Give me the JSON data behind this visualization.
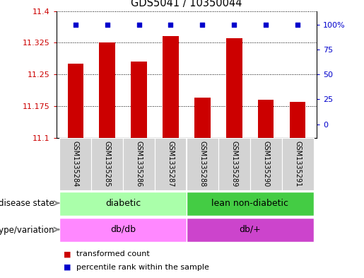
{
  "title": "GDS5041 / 10350044",
  "samples": [
    "GSM1335284",
    "GSM1335285",
    "GSM1335286",
    "GSM1335287",
    "GSM1335288",
    "GSM1335289",
    "GSM1335290",
    "GSM1335291"
  ],
  "bar_values": [
    11.275,
    11.325,
    11.28,
    11.34,
    11.195,
    11.335,
    11.19,
    11.185
  ],
  "percentile_values": [
    100,
    100,
    100,
    100,
    100,
    100,
    100,
    100
  ],
  "ylim": [
    11.1,
    11.4
  ],
  "yticks": [
    11.1,
    11.175,
    11.25,
    11.325,
    11.4
  ],
  "right_yticks": [
    0,
    25,
    50,
    75,
    100
  ],
  "bar_color": "#cc0000",
  "percentile_color": "#0000cc",
  "left_tick_color": "#cc0000",
  "right_tick_color": "#0000cc",
  "disease_state_groups": [
    {
      "label": "diabetic",
      "start": 0,
      "end": 4,
      "color": "#aaffaa"
    },
    {
      "label": "lean non-diabetic",
      "start": 4,
      "end": 8,
      "color": "#44cc44"
    }
  ],
  "genotype_groups": [
    {
      "label": "db/db",
      "start": 0,
      "end": 4,
      "color": "#ff88ff"
    },
    {
      "label": "db/+",
      "start": 4,
      "end": 8,
      "color": "#cc44cc"
    }
  ],
  "row_labels": [
    "disease state",
    "genotype/variation"
  ],
  "legend_items": [
    {
      "label": "transformed count",
      "color": "#cc0000"
    },
    {
      "label": "percentile rank within the sample",
      "color": "#0000cc"
    }
  ],
  "background_color": "#ffffff",
  "bar_width": 0.5,
  "n_samples": 8
}
